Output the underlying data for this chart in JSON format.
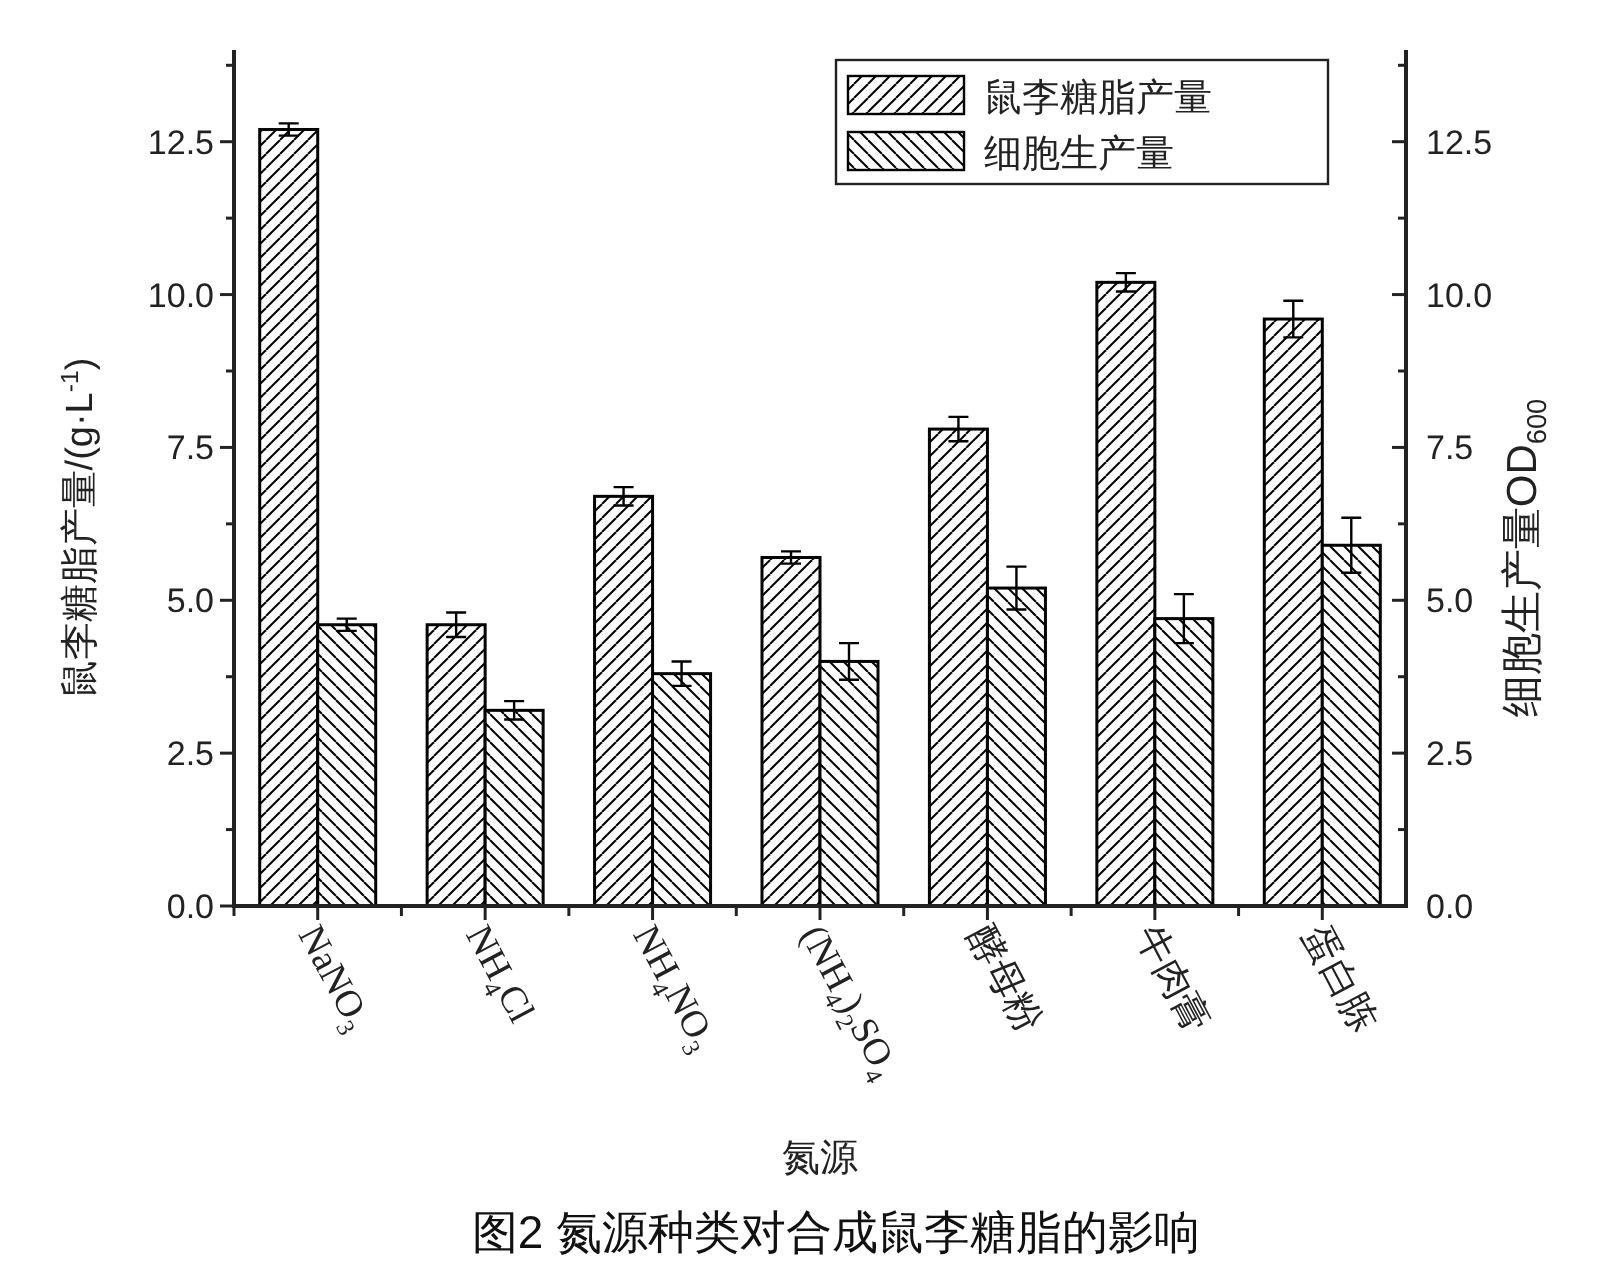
{
  "chart_data": {
    "type": "bar",
    "title": "图2  氮源种类对合成鼠李糖脂的影响",
    "xlabel": "氮源",
    "ylabel": "鼠李糖脂产量/(g·L$^{-1}$)",
    "y2label": "细胞生产量OD$_{600}$",
    "categories": [
      "NaNO$_{3}$",
      "NH$_{4}$Cl",
      "NH$_{4}$NO$_{3}$",
      "(NH$_{4}$)$_{2}$SO$_{4}$",
      "酵母粉",
      "牛肉膏",
      "蛋白胨"
    ],
    "series": [
      {
        "name": "鼠李糖脂产量",
        "color": "#000000",
        "values": [
          12.7,
          4.6,
          6.7,
          5.7,
          7.8,
          10.2,
          9.6
        ],
        "errors": [
          0.1,
          0.2,
          0.15,
          0.1,
          0.2,
          0.15,
          0.3
        ]
      },
      {
        "name": "细胞生产量",
        "color": "#000000",
        "values": [
          4.6,
          3.2,
          3.8,
          4.0,
          5.2,
          4.7,
          5.9
        ],
        "errors": [
          0.1,
          0.15,
          0.2,
          0.3,
          0.35,
          0.4,
          0.45
        ]
      }
    ],
    "ylim": [
      0,
      14
    ],
    "yticks": [
      {
        "value": 0,
        "label": "0.0"
      },
      {
        "value": 1.25,
        "label": null
      },
      2.5,
      {
        "value": 3.75,
        "label": null
      },
      {
        "value": 5,
        "label": "5.0"
      },
      {
        "value": 6.25,
        "label": null
      },
      7.5,
      {
        "value": 8.75,
        "label": null
      },
      {
        "value": 10,
        "label": "10.0"
      },
      {
        "value": 11.25,
        "label": null
      },
      12.5,
      {
        "value": 13.75,
        "label": null
      }
    ],
    "y2lim": [
      0,
      14
    ],
    "y2ticks": [
      {
        "value": 0,
        "label": "0.0"
      },
      {
        "value": 1.25,
        "label": null
      },
      2.5,
      {
        "value": 3.75,
        "label": null
      },
      {
        "value": 5,
        "label": "5.0"
      },
      {
        "value": 6.25,
        "label": null
      },
      7.5,
      {
        "value": 8.75,
        "label": null
      },
      {
        "value": 10,
        "label": "10.0"
      },
      {
        "value": 11.25,
        "label": null
      },
      12.5,
      {
        "value": 13.75,
        "label": null
      }
    ],
    "legend": "top right",
    "grid": false
  }
}
